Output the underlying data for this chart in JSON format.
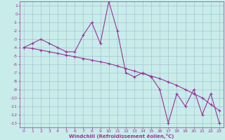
{
  "xlabel": "Windchill (Refroidissement éolien,°C)",
  "x": [
    0,
    1,
    2,
    3,
    4,
    5,
    6,
    7,
    8,
    9,
    10,
    11,
    12,
    13,
    14,
    15,
    16,
    17,
    18,
    19,
    20,
    21,
    22,
    23
  ],
  "y_line1": [
    -4.0,
    -3.5,
    -3.0,
    -3.5,
    -4.0,
    -4.5,
    -4.5,
    -2.5,
    -1.0,
    -3.5,
    1.5,
    -2.0,
    -7.0,
    -7.5,
    -7.0,
    -7.5,
    -9.0,
    -13.0,
    -9.5,
    -11.0,
    -9.0,
    -12.0,
    -9.5,
    -13.0
  ],
  "y_line2": [
    -4.0,
    -4.1,
    -4.3,
    -4.5,
    -4.7,
    -4.9,
    -5.1,
    -5.3,
    -5.5,
    -5.7,
    -5.9,
    -6.2,
    -6.5,
    -6.8,
    -7.1,
    -7.4,
    -7.7,
    -8.1,
    -8.5,
    -9.0,
    -9.5,
    -10.0,
    -10.8,
    -11.5
  ],
  "color": "#993399",
  "bg_color": "#c8ecea",
  "grid_color": "#a0b8cc",
  "ylim": [
    -13.5,
    1.5
  ],
  "xlim": [
    -0.5,
    23.5
  ],
  "yticks": [
    1,
    0,
    -1,
    -2,
    -3,
    -4,
    -5,
    -6,
    -7,
    -8,
    -9,
    -10,
    -11,
    -12,
    -13
  ],
  "xticks": [
    0,
    1,
    2,
    3,
    4,
    5,
    6,
    7,
    8,
    9,
    10,
    11,
    12,
    13,
    14,
    15,
    16,
    17,
    18,
    19,
    20,
    21,
    22,
    23
  ],
  "marker": "+",
  "linewidth": 0.8,
  "markersize": 3.5,
  "tick_fontsize": 4.5,
  "xlabel_fontsize": 5.0
}
